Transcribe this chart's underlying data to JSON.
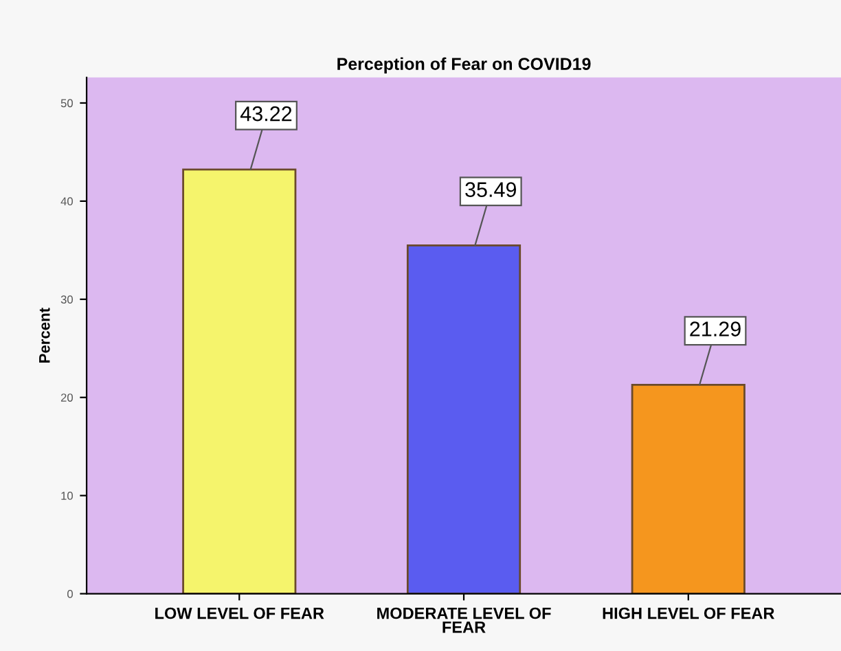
{
  "chart_data": {
    "type": "bar",
    "title": "Perception of Fear on COVID19",
    "ylabel": "Percent",
    "categories": [
      "LOW LEVEL OF FEAR",
      "MODERATE LEVEL OF\nFEAR",
      "HIGH LEVEL OF FEAR"
    ],
    "values": [
      43.22,
      35.49,
      21.29
    ],
    "colors": [
      "#f5f46c",
      "#5a5cf0",
      "#f5961e"
    ],
    "ylim": [
      0,
      52.6
    ],
    "yticks": [
      0,
      10,
      20,
      30,
      40,
      50
    ],
    "grid": false,
    "legend": false,
    "data_labels": true
  }
}
